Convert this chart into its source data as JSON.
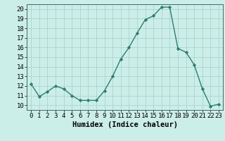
{
  "x": [
    0,
    1,
    2,
    3,
    4,
    5,
    6,
    7,
    8,
    9,
    10,
    11,
    12,
    13,
    14,
    15,
    16,
    17,
    18,
    19,
    20,
    21,
    22,
    23
  ],
  "y": [
    12.2,
    10.9,
    11.4,
    12.0,
    11.7,
    11.0,
    10.5,
    10.5,
    10.5,
    11.5,
    13.0,
    14.8,
    16.0,
    17.5,
    18.9,
    19.3,
    20.2,
    20.2,
    15.9,
    15.5,
    14.2,
    11.7,
    9.9,
    10.1
  ],
  "line_color": "#2e7d6e",
  "marker": "D",
  "marker_size": 2.2,
  "bg_color": "#cceee8",
  "grid_color": "#aad4cc",
  "xlabel": "Humidex (Indice chaleur)",
  "ylim": [
    10,
    20
  ],
  "xlim_min": -0.5,
  "xlim_max": 23.5,
  "yticks": [
    10,
    11,
    12,
    13,
    14,
    15,
    16,
    17,
    18,
    19,
    20
  ],
  "xticks": [
    0,
    1,
    2,
    3,
    4,
    5,
    6,
    7,
    8,
    9,
    10,
    11,
    12,
    13,
    14,
    15,
    16,
    17,
    18,
    19,
    20,
    21,
    22,
    23
  ],
  "xlabel_fontsize": 7.5,
  "tick_fontsize": 6.5,
  "line_width": 1.0
}
